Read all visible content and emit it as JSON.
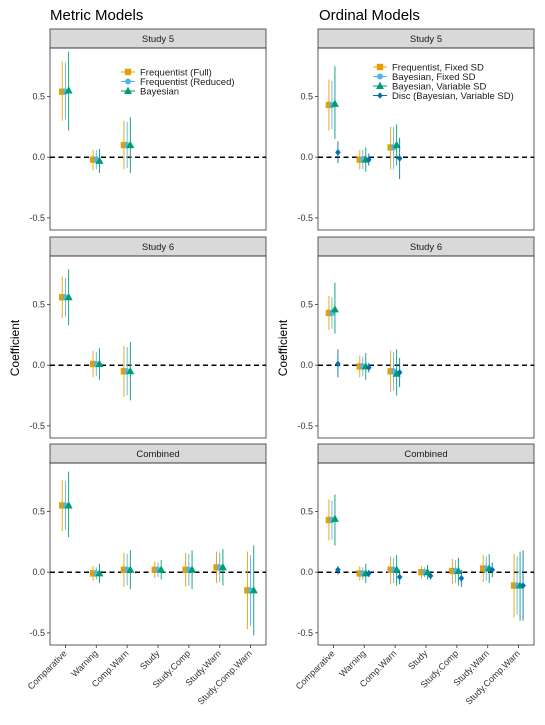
{
  "colors": {
    "freq_full": "#E69F00",
    "freq_reduced": "#56B4E9",
    "bayes": "#009E73",
    "disc": "#0072B2"
  },
  "metric": {
    "title": "Metric Models",
    "ylabel": "Coefficient",
    "legend": [
      {
        "label": "Frequentist (Full)",
        "color": "#E69F00",
        "shape": "square"
      },
      {
        "label": "Frequentist (Reduced)",
        "color": "#56B4E9",
        "shape": "circle"
      },
      {
        "label": "Bayesian",
        "color": "#009E73",
        "shape": "triangle"
      }
    ]
  },
  "ordinal": {
    "title": "Ordinal Models",
    "ylabel": "Coefficient",
    "legend": [
      {
        "label": "Frequentist, Fixed SD",
        "color": "#E69F00",
        "shape": "square"
      },
      {
        "label": "Bayesian, Fixed SD",
        "color": "#56B4E9",
        "shape": "circle"
      },
      {
        "label": "Bayesian, Variable SD",
        "color": "#009E73",
        "shape": "triangle"
      },
      {
        "label": "Disc (Bayesian, Variable SD)",
        "color": "#0072B2",
        "shape": "diamond"
      }
    ]
  },
  "chart_data": [
    {
      "type": "scatter",
      "panel": "metric-study5",
      "strip": "Study 5",
      "ylim": [
        -0.6,
        0.9
      ],
      "yticks": [
        -0.5,
        0.0,
        0.5
      ],
      "ytick_labels": [
        "-0.5",
        "0.0",
        "0.5"
      ],
      "categories": [
        "Comparative",
        "Warning",
        "Comp.Warn"
      ],
      "series": [
        {
          "color": "#E69F00",
          "shape": "square",
          "points": [
            {
              "x": 1,
              "y": 0.54,
              "lo": 0.3,
              "hi": 0.79
            },
            {
              "x": 2,
              "y": -0.02,
              "lo": -0.11,
              "hi": 0.06
            },
            {
              "x": 3,
              "y": 0.1,
              "lo": -0.1,
              "hi": 0.3
            }
          ]
        },
        {
          "color": "#56B4E9",
          "shape": "circle",
          "points": [
            {
              "x": 1,
              "y": 0.54,
              "lo": 0.31,
              "hi": 0.78
            },
            {
              "x": 2,
              "y": -0.02,
              "lo": -0.1,
              "hi": 0.06
            },
            {
              "x": 3,
              "y": 0.1,
              "lo": -0.09,
              "hi": 0.29
            }
          ]
        },
        {
          "color": "#009E73",
          "shape": "triangle",
          "points": [
            {
              "x": 1,
              "y": 0.55,
              "lo": 0.22,
              "hi": 0.87
            },
            {
              "x": 2,
              "y": -0.03,
              "lo": -0.13,
              "hi": 0.07
            },
            {
              "x": 3,
              "y": 0.1,
              "lo": -0.13,
              "hi": 0.33
            }
          ]
        }
      ]
    },
    {
      "type": "scatter",
      "panel": "metric-study6",
      "strip": "Study 6",
      "ylim": [
        -0.6,
        0.9
      ],
      "yticks": [
        -0.5,
        0.0,
        0.5
      ],
      "ytick_labels": [
        "-0.5",
        "0.0",
        "0.5"
      ],
      "categories": [
        "Comparative",
        "Warning",
        "Comp.Warn"
      ],
      "series": [
        {
          "color": "#E69F00",
          "shape": "square",
          "points": [
            {
              "x": 1,
              "y": 0.56,
              "lo": 0.39,
              "hi": 0.73
            },
            {
              "x": 2,
              "y": 0.01,
              "lo": -0.1,
              "hi": 0.12
            },
            {
              "x": 3,
              "y": -0.05,
              "lo": -0.26,
              "hi": 0.16
            }
          ]
        },
        {
          "color": "#56B4E9",
          "shape": "circle",
          "points": [
            {
              "x": 1,
              "y": 0.56,
              "lo": 0.4,
              "hi": 0.72
            },
            {
              "x": 2,
              "y": 0.01,
              "lo": -0.09,
              "hi": 0.11
            },
            {
              "x": 3,
              "y": -0.05,
              "lo": -0.25,
              "hi": 0.15
            }
          ]
        },
        {
          "color": "#009E73",
          "shape": "triangle",
          "points": [
            {
              "x": 1,
              "y": 0.56,
              "lo": 0.33,
              "hi": 0.79
            },
            {
              "x": 2,
              "y": 0.01,
              "lo": -0.12,
              "hi": 0.14
            },
            {
              "x": 3,
              "y": -0.05,
              "lo": -0.29,
              "hi": 0.19
            }
          ]
        }
      ]
    },
    {
      "type": "scatter",
      "panel": "metric-combined",
      "strip": "Combined",
      "ylim": [
        -0.6,
        0.9
      ],
      "yticks": [
        -0.5,
        0.0,
        0.5
      ],
      "ytick_labels": [
        "-0.5",
        "0.0",
        "0.5"
      ],
      "categories": [
        "Comparative",
        "Warning",
        "Comp.Warn",
        "Study",
        "Study.Comp",
        "Study.Warn",
        "Study.Comp.Warn"
      ],
      "series": [
        {
          "color": "#E69F00",
          "shape": "square",
          "points": [
            {
              "x": 1,
              "y": 0.55,
              "lo": 0.34,
              "hi": 0.76
            },
            {
              "x": 2,
              "y": -0.01,
              "lo": -0.07,
              "hi": 0.05
            },
            {
              "x": 3,
              "y": 0.02,
              "lo": -0.12,
              "hi": 0.16
            },
            {
              "x": 4,
              "y": 0.02,
              "lo": -0.05,
              "hi": 0.09
            },
            {
              "x": 5,
              "y": 0.02,
              "lo": -0.12,
              "hi": 0.16
            },
            {
              "x": 6,
              "y": 0.04,
              "lo": -0.09,
              "hi": 0.17
            },
            {
              "x": 7,
              "y": -0.15,
              "lo": -0.47,
              "hi": 0.17
            }
          ]
        },
        {
          "color": "#56B4E9",
          "shape": "circle",
          "points": [
            {
              "x": 1,
              "y": 0.55,
              "lo": 0.35,
              "hi": 0.75
            },
            {
              "x": 2,
              "y": -0.01,
              "lo": -0.06,
              "hi": 0.04
            },
            {
              "x": 3,
              "y": 0.02,
              "lo": -0.11,
              "hi": 0.15
            },
            {
              "x": 4,
              "y": 0.02,
              "lo": -0.04,
              "hi": 0.08
            },
            {
              "x": 5,
              "y": 0.02,
              "lo": -0.11,
              "hi": 0.15
            },
            {
              "x": 6,
              "y": 0.04,
              "lo": -0.08,
              "hi": 0.16
            },
            {
              "x": 7,
              "y": -0.15,
              "lo": -0.44,
              "hi": 0.14
            }
          ]
        },
        {
          "color": "#009E73",
          "shape": "triangle",
          "points": [
            {
              "x": 1,
              "y": 0.55,
              "lo": 0.29,
              "hi": 0.83
            },
            {
              "x": 2,
              "y": -0.01,
              "lo": -0.09,
              "hi": 0.07
            },
            {
              "x": 3,
              "y": 0.02,
              "lo": -0.14,
              "hi": 0.18
            },
            {
              "x": 4,
              "y": 0.02,
              "lo": -0.06,
              "hi": 0.1
            },
            {
              "x": 5,
              "y": 0.02,
              "lo": -0.14,
              "hi": 0.18
            },
            {
              "x": 6,
              "y": 0.04,
              "lo": -0.11,
              "hi": 0.19
            },
            {
              "x": 7,
              "y": -0.15,
              "lo": -0.52,
              "hi": 0.22
            }
          ]
        }
      ]
    },
    {
      "type": "scatter",
      "panel": "ordinal-study5",
      "strip": "Study 5",
      "ylim": [
        -0.6,
        0.9
      ],
      "yticks": [
        -0.5,
        0.0,
        0.5
      ],
      "ytick_labels": [
        "-0.5",
        "0.0",
        "0.5"
      ],
      "categories": [
        "Comparative",
        "Warning",
        "Comp.Warn"
      ],
      "series": [
        {
          "color": "#E69F00",
          "shape": "square",
          "points": [
            {
              "x": 1,
              "y": 0.43,
              "lo": 0.22,
              "hi": 0.64
            },
            {
              "x": 2,
              "y": -0.02,
              "lo": -0.1,
              "hi": 0.06
            },
            {
              "x": 3,
              "y": 0.08,
              "lo": -0.1,
              "hi": 0.25
            }
          ]
        },
        {
          "color": "#56B4E9",
          "shape": "circle",
          "points": [
            {
              "x": 1,
              "y": 0.43,
              "lo": 0.23,
              "hi": 0.63
            },
            {
              "x": 2,
              "y": -0.02,
              "lo": -0.1,
              "hi": 0.06
            },
            {
              "x": 3,
              "y": 0.08,
              "lo": -0.1,
              "hi": 0.25
            }
          ]
        },
        {
          "color": "#009E73",
          "shape": "triangle",
          "points": [
            {
              "x": 1,
              "y": 0.44,
              "lo": 0.15,
              "hi": 0.75
            },
            {
              "x": 2,
              "y": -0.02,
              "lo": -0.12,
              "hi": 0.08
            },
            {
              "x": 3,
              "y": 0.1,
              "lo": -0.07,
              "hi": 0.27
            }
          ]
        },
        {
          "color": "#0072B2",
          "shape": "diamond",
          "points": [
            {
              "x": 1,
              "y": 0.04,
              "lo": -0.05,
              "hi": 0.13
            },
            {
              "x": 2,
              "y": -0.02,
              "lo": -0.07,
              "hi": 0.03
            },
            {
              "x": 3,
              "y": -0.01,
              "lo": -0.18,
              "hi": 0.16
            }
          ]
        }
      ]
    },
    {
      "type": "scatter",
      "panel": "ordinal-study6",
      "strip": "Study 6",
      "ylim": [
        -0.6,
        0.9
      ],
      "yticks": [
        -0.5,
        0.0,
        0.5
      ],
      "ytick_labels": [
        "-0.5",
        "0.0",
        "0.5"
      ],
      "categories": [
        "Comparative",
        "Warning",
        "Comp.Warn"
      ],
      "series": [
        {
          "color": "#E69F00",
          "shape": "square",
          "points": [
            {
              "x": 1,
              "y": 0.43,
              "lo": 0.29,
              "hi": 0.57
            },
            {
              "x": 2,
              "y": -0.01,
              "lo": -0.1,
              "hi": 0.08
            },
            {
              "x": 3,
              "y": -0.05,
              "lo": -0.22,
              "hi": 0.12
            }
          ]
        },
        {
          "color": "#56B4E9",
          "shape": "circle",
          "points": [
            {
              "x": 1,
              "y": 0.43,
              "lo": 0.3,
              "hi": 0.56
            },
            {
              "x": 2,
              "y": -0.01,
              "lo": -0.09,
              "hi": 0.07
            },
            {
              "x": 3,
              "y": -0.05,
              "lo": -0.21,
              "hi": 0.11
            }
          ]
        },
        {
          "color": "#009E73",
          "shape": "triangle",
          "points": [
            {
              "x": 1,
              "y": 0.46,
              "lo": 0.26,
              "hi": 0.68
            },
            {
              "x": 2,
              "y": -0.01,
              "lo": -0.12,
              "hi": 0.1
            },
            {
              "x": 3,
              "y": -0.07,
              "lo": -0.25,
              "hi": 0.13
            }
          ]
        },
        {
          "color": "#0072B2",
          "shape": "diamond",
          "points": [
            {
              "x": 1,
              "y": 0.01,
              "lo": -0.1,
              "hi": 0.13
            },
            {
              "x": 2,
              "y": -0.02,
              "lo": -0.06,
              "hi": 0.02
            },
            {
              "x": 3,
              "y": -0.06,
              "lo": -0.18,
              "hi": 0.06
            }
          ]
        }
      ]
    },
    {
      "type": "scatter",
      "panel": "ordinal-combined",
      "strip": "Combined",
      "ylim": [
        -0.6,
        0.9
      ],
      "yticks": [
        -0.5,
        0.0,
        0.5
      ],
      "ytick_labels": [
        "-0.5",
        "0.0",
        "0.5"
      ],
      "categories": [
        "Comparative",
        "Warning",
        "Comp.Warn",
        "Study",
        "Study.Comp",
        "Study.Warn",
        "Study.Comp.Warn"
      ],
      "series": [
        {
          "color": "#E69F00",
          "shape": "square",
          "points": [
            {
              "x": 1,
              "y": 0.43,
              "lo": 0.26,
              "hi": 0.6
            },
            {
              "x": 2,
              "y": -0.01,
              "lo": -0.07,
              "hi": 0.05
            },
            {
              "x": 3,
              "y": 0.02,
              "lo": -0.1,
              "hi": 0.13
            },
            {
              "x": 4,
              "y": 0.0,
              "lo": -0.05,
              "hi": 0.05
            },
            {
              "x": 5,
              "y": 0.01,
              "lo": -0.1,
              "hi": 0.11
            },
            {
              "x": 6,
              "y": 0.03,
              "lo": -0.08,
              "hi": 0.14
            },
            {
              "x": 7,
              "y": -0.11,
              "lo": -0.37,
              "hi": 0.15
            }
          ]
        },
        {
          "color": "#56B4E9",
          "shape": "circle",
          "points": [
            {
              "x": 1,
              "y": 0.43,
              "lo": 0.27,
              "hi": 0.59
            },
            {
              "x": 2,
              "y": -0.01,
              "lo": -0.06,
              "hi": 0.04
            },
            {
              "x": 3,
              "y": 0.02,
              "lo": -0.09,
              "hi": 0.12
            },
            {
              "x": 4,
              "y": 0.0,
              "lo": -0.04,
              "hi": 0.04
            },
            {
              "x": 5,
              "y": 0.01,
              "lo": -0.09,
              "hi": 0.1
            },
            {
              "x": 6,
              "y": 0.03,
              "lo": -0.07,
              "hi": 0.13
            },
            {
              "x": 7,
              "y": -0.11,
              "lo": -0.35,
              "hi": 0.13
            }
          ]
        },
        {
          "color": "#009E73",
          "shape": "triangle",
          "points": [
            {
              "x": 1,
              "y": 0.44,
              "lo": 0.22,
              "hi": 0.64
            },
            {
              "x": 2,
              "y": -0.01,
              "lo": -0.09,
              "hi": 0.07
            },
            {
              "x": 3,
              "y": 0.02,
              "lo": -0.11,
              "hi": 0.14
            },
            {
              "x": 4,
              "y": 0.0,
              "lo": -0.06,
              "hi": 0.06
            },
            {
              "x": 5,
              "y": 0.01,
              "lo": -0.11,
              "hi": 0.12
            },
            {
              "x": 6,
              "y": 0.03,
              "lo": -0.09,
              "hi": 0.15
            },
            {
              "x": 7,
              "y": -0.11,
              "lo": -0.4,
              "hi": 0.17
            }
          ]
        },
        {
          "color": "#0072B2",
          "shape": "diamond",
          "points": [
            {
              "x": 1,
              "y": 0.02,
              "lo": -0.02,
              "hi": 0.05
            },
            {
              "x": 2,
              "y": -0.01,
              "lo": -0.04,
              "hi": 0.02
            },
            {
              "x": 3,
              "y": -0.04,
              "lo": -0.1,
              "hi": 0.02
            },
            {
              "x": 4,
              "y": -0.03,
              "lo": -0.06,
              "hi": 0.0
            },
            {
              "x": 5,
              "y": -0.05,
              "lo": -0.12,
              "hi": 0.02
            },
            {
              "x": 6,
              "y": 0.02,
              "lo": -0.04,
              "hi": 0.08
            },
            {
              "x": 7,
              "y": -0.11,
              "lo": -0.4,
              "hi": 0.18
            }
          ]
        }
      ]
    }
  ]
}
